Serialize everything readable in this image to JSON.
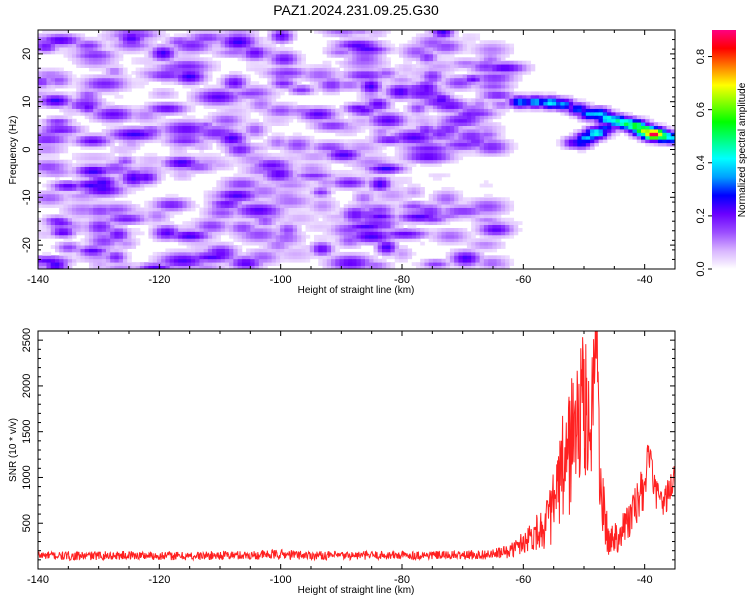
{
  "title": "PAZ1.2024.231.09.25.G30",
  "chart_data": [
    {
      "type": "heatmap",
      "xlabel": "Height of straight line (km)",
      "ylabel": "Frequency (Hz)",
      "xlim": [
        -140,
        -35
      ],
      "ylim": [
        -25,
        25
      ],
      "x_ticks": [
        -140,
        -120,
        -100,
        -80,
        -60,
        -40
      ],
      "y_ticks": [
        -20,
        -10,
        0,
        10,
        20
      ],
      "colorbar": {
        "label": "Normalized spectral amplitude",
        "range": [
          0,
          0.9
        ],
        "ticks": [
          0.0,
          0.2,
          0.4,
          0.6,
          0.8
        ],
        "colormap": [
          "#ffffff",
          "#d8b4ff",
          "#9b4dff",
          "#6a00ff",
          "#0000ff",
          "#00a0ff",
          "#00ffff",
          "#00ff80",
          "#00ff00",
          "#80ff00",
          "#ffff00",
          "#ff8000",
          "#ff0000",
          "#ff0080"
        ]
      },
      "noise_region_x": [
        -140,
        -63
      ],
      "noise_amplitude_range": [
        0.0,
        0.25
      ],
      "features": [
        {
          "x": -60.5,
          "y": 10,
          "amp": 0.35
        },
        {
          "x": -58,
          "y": 10,
          "amp": 0.38
        },
        {
          "x": -55.5,
          "y": 9.8,
          "amp": 0.42
        },
        {
          "x": -53.5,
          "y": 9.5,
          "amp": 0.36
        },
        {
          "x": -51,
          "y": 8.5,
          "amp": 0.32
        },
        {
          "x": -49,
          "y": 7.5,
          "amp": 0.38
        },
        {
          "x": -47.5,
          "y": 7.5,
          "amp": 0.4
        },
        {
          "x": -46,
          "y": 6.5,
          "amp": 0.45
        },
        {
          "x": -44.5,
          "y": 6.0,
          "amp": 0.48
        },
        {
          "x": -43,
          "y": 5.5,
          "amp": 0.52
        },
        {
          "x": -41.5,
          "y": 5.0,
          "amp": 0.58
        },
        {
          "x": -40,
          "y": 4.0,
          "amp": 0.68
        },
        {
          "x": -38.5,
          "y": 3.3,
          "amp": 0.9
        },
        {
          "x": -37,
          "y": 2.8,
          "amp": 0.55
        },
        {
          "x": -35.5,
          "y": 2.5,
          "amp": 0.4
        },
        {
          "x": -48,
          "y": 3.5,
          "amp": 0.45
        },
        {
          "x": -49.5,
          "y": 2.5,
          "amp": 0.38
        },
        {
          "x": -50.5,
          "y": 1.5,
          "amp": 0.3
        },
        {
          "x": -51.5,
          "y": 1.5,
          "amp": 0.25
        },
        {
          "x": -46.5,
          "y": 4.5,
          "amp": 0.3
        }
      ]
    },
    {
      "type": "line",
      "xlabel": "Height of straight line (km)",
      "ylabel": "SNR (10 * v/v)",
      "xlim": [
        -140,
        -35
      ],
      "ylim": [
        0,
        2600
      ],
      "x_ticks": [
        -140,
        -120,
        -100,
        -80,
        -60,
        -40
      ],
      "y_ticks": [
        500,
        1000,
        1500,
        2000,
        2500
      ],
      "series": [
        {
          "color": "#ff2020",
          "x": [
            -140,
            -135,
            -130,
            -125,
            -120,
            -115,
            -110,
            -105,
            -100,
            -95,
            -90,
            -85,
            -80,
            -75,
            -70,
            -65,
            -62,
            -60,
            -58,
            -56,
            -55,
            -54,
            -53,
            -52,
            -51,
            -50,
            -49.5,
            -49,
            -48.5,
            -48,
            -47.5,
            -47,
            -46,
            -45,
            -44,
            -43,
            -42,
            -41,
            -40,
            -39.5,
            -39,
            -38.5,
            -38,
            -37,
            -36,
            -35
          ],
          "y": [
            150,
            140,
            145,
            150,
            145,
            140,
            150,
            150,
            160,
            150,
            145,
            150,
            150,
            150,
            150,
            160,
            200,
            300,
            400,
            500,
            700,
            900,
            1200,
            1400,
            1600,
            1800,
            1700,
            1500,
            2000,
            2600,
            1400,
            700,
            300,
            350,
            400,
            500,
            600,
            750,
            900,
            1200,
            1250,
            900,
            800,
            700,
            850,
            1000
          ],
          "noise_std": [
            30,
            30,
            30,
            30,
            30,
            30,
            30,
            30,
            35,
            30,
            30,
            30,
            30,
            30,
            30,
            35,
            50,
            80,
            120,
            180,
            250,
            350,
            450,
            500,
            500,
            500,
            500,
            500,
            450,
            300,
            400,
            250,
            120,
            120,
            130,
            140,
            150,
            160,
            170,
            100,
            80,
            100,
            100,
            100,
            110,
            110
          ]
        }
      ]
    }
  ]
}
